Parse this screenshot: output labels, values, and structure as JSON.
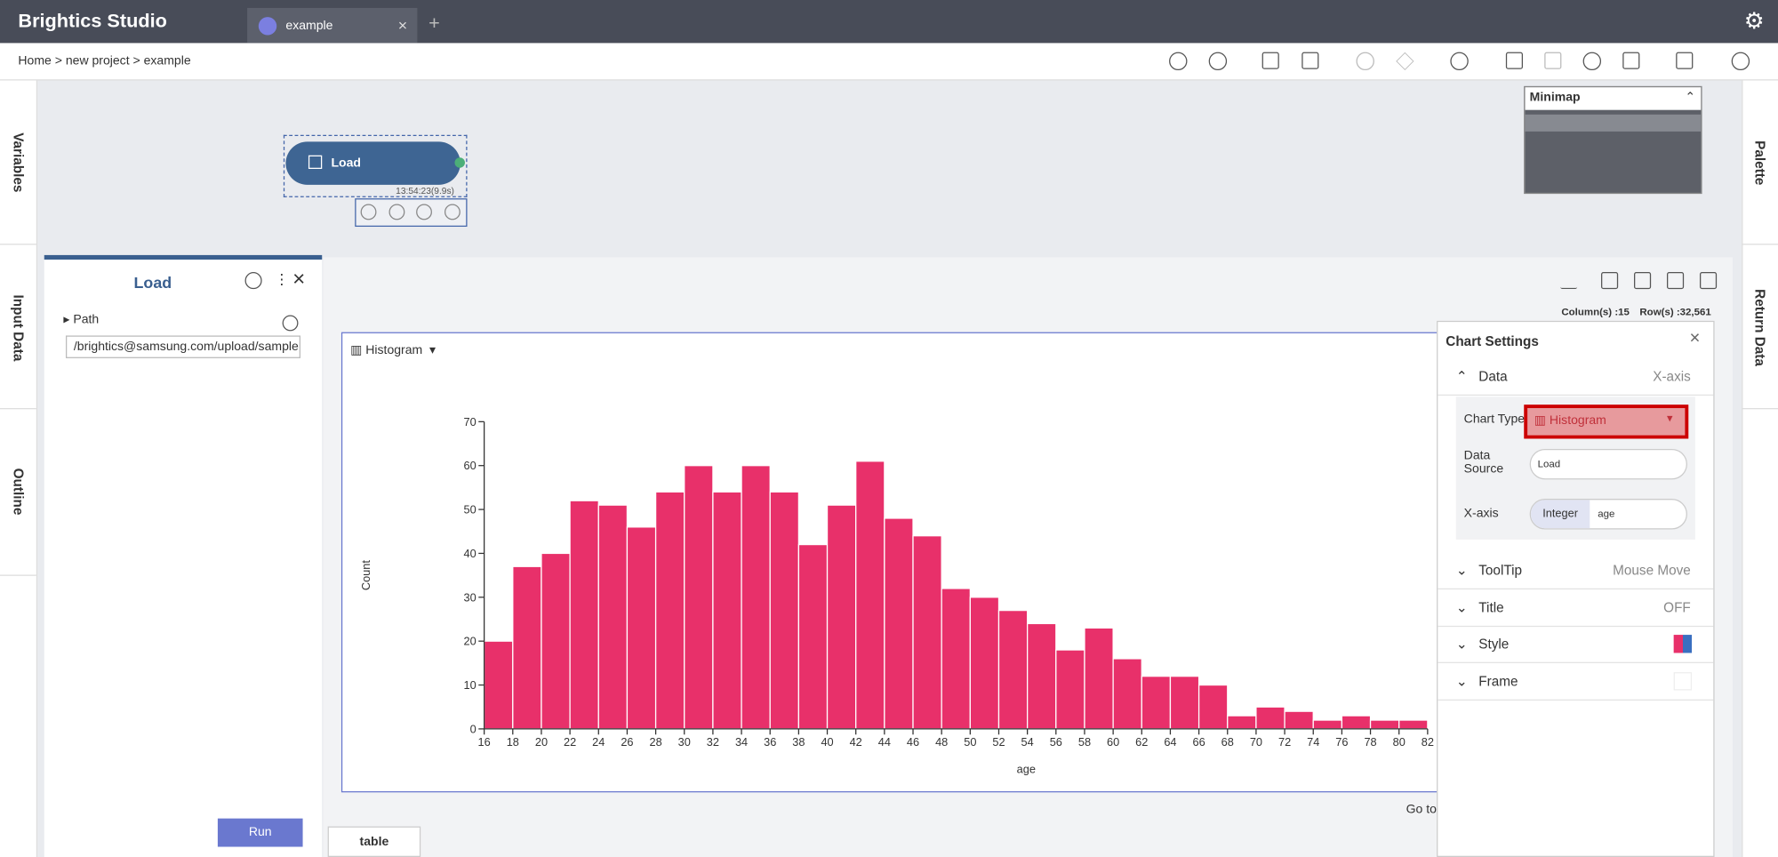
{
  "app_title": "Brightics Studio",
  "tab": "example",
  "breadcrumb": [
    "Home",
    "new project",
    "example"
  ],
  "side_tabs": {
    "left": [
      "Variables",
      "Input Data",
      "Outline"
    ],
    "right": [
      "Palette",
      "Return Data"
    ]
  },
  "minimap": "Minimap",
  "node": {
    "label": "Load",
    "time": "13:54:23(9.9s)"
  },
  "panel": {
    "title": "Load",
    "path_label": "Path",
    "path_value": "/brightics@samsung.com/upload/sample",
    "run": "Run"
  },
  "result": {
    "columns": "Column(s) :15",
    "rows": "Row(s) :32,561",
    "chart_type": "Histogram",
    "go_to": "Go to",
    "table_tab": "table"
  },
  "settings": {
    "title": "Chart Settings",
    "data": "Data",
    "data_value": "X-axis",
    "chart_type_label": "Chart Type",
    "chart_type": "Histogram",
    "data_source_label": "Data Source",
    "data_source": "Load",
    "x_axis_label": "X-axis",
    "x_axis_type": "Integer",
    "x_axis_value": "age",
    "sections": [
      {
        "name": "ToolTip",
        "value": "Mouse Move"
      },
      {
        "name": "Title",
        "value": "OFF"
      },
      {
        "name": "Style"
      },
      {
        "name": "Frame"
      }
    ]
  },
  "chart_data": {
    "type": "histogram",
    "xlabel": "age",
    "ylabel": "Count",
    "color": "#e8306a",
    "bins": [
      16,
      18,
      20,
      22,
      24,
      26,
      28,
      30,
      32,
      34,
      36,
      38,
      40,
      42,
      44,
      46,
      48,
      50,
      52,
      54,
      56,
      58,
      60,
      62,
      64,
      66,
      68,
      70,
      72,
      74,
      76,
      78,
      80,
      82
    ],
    "values": [
      20,
      37,
      40,
      52,
      51,
      46,
      54,
      60,
      54,
      60,
      54,
      42,
      51,
      61,
      48,
      44,
      32,
      30,
      27,
      24,
      18,
      23,
      16,
      12,
      12,
      10,
      3,
      5,
      4,
      2,
      3,
      2,
      2
    ],
    "xlim": [
      16,
      82
    ],
    "ylim": [
      0,
      70
    ],
    "xticks": [
      16,
      18,
      20,
      22,
      24,
      26,
      28,
      30,
      32,
      34,
      36,
      38,
      40,
      42,
      44,
      46,
      48,
      50,
      52,
      54,
      56,
      58,
      60,
      62,
      64,
      66,
      68,
      70,
      72,
      74,
      76,
      78,
      80,
      82
    ],
    "yticks": [
      0,
      10,
      20,
      30,
      40,
      50,
      60,
      70
    ]
  }
}
